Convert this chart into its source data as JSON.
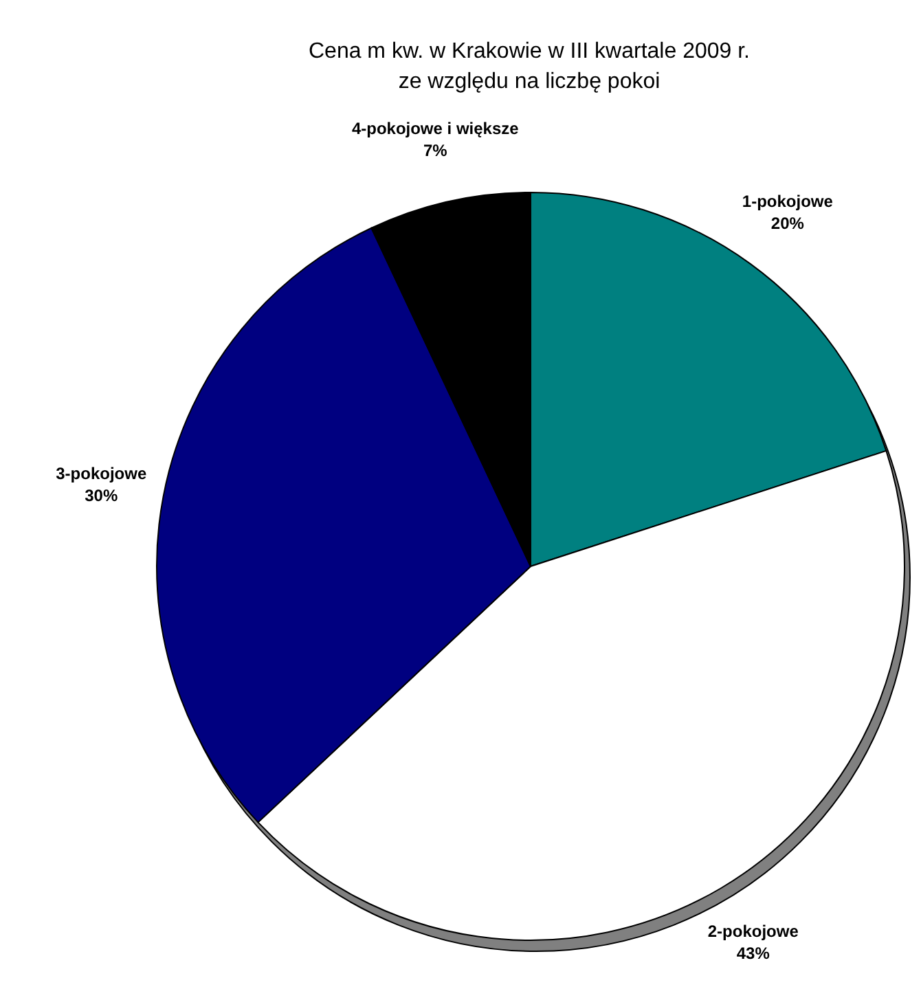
{
  "chart_data": {
    "type": "pie",
    "title": "Cena m kw. w Krakowie w III kwartale 2009 r.\nze względu na liczbę pokoi",
    "categories": [
      "1-pokojowe",
      "2-pokojowe",
      "3-pokojowe",
      "4-pokojowe i większe"
    ],
    "values": [
      20,
      43,
      30,
      7
    ],
    "value_labels": [
      "20%",
      "43%",
      "30%",
      "7%"
    ],
    "colors": [
      "#008080",
      "#ffffff",
      "#000080",
      "#000000"
    ]
  }
}
